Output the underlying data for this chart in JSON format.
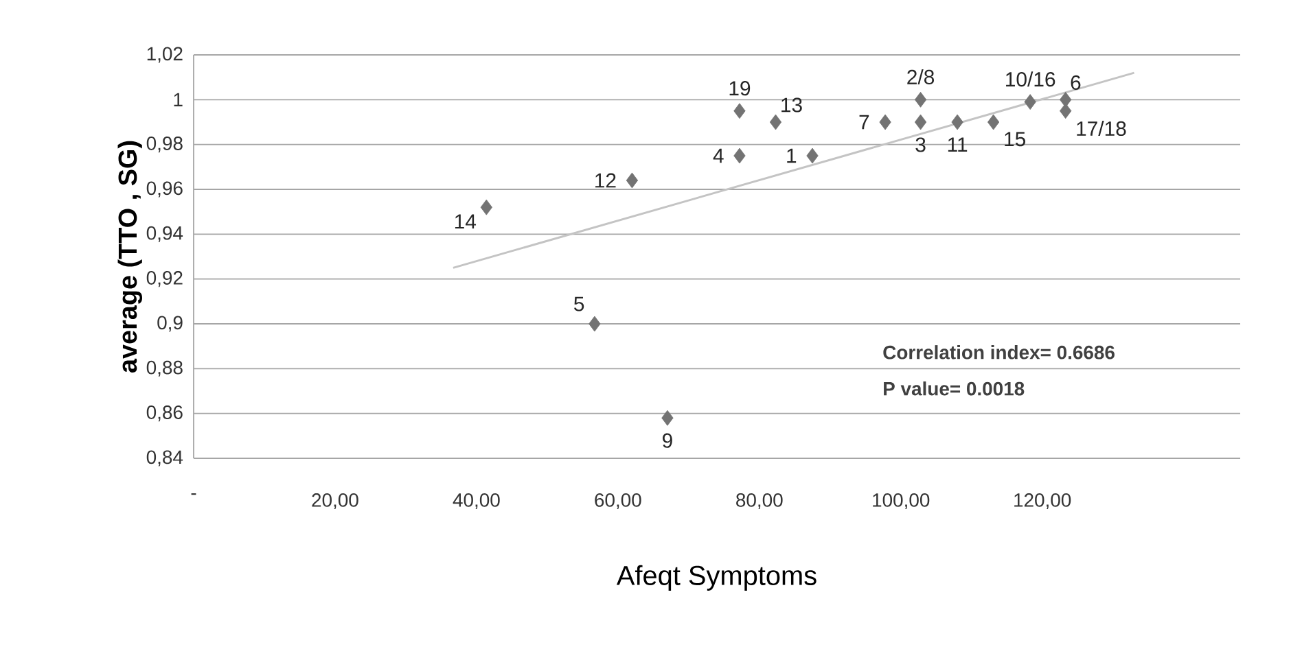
{
  "chart_data": {
    "type": "scatter",
    "xlabel": "Afeqt Symptoms",
    "ylabel": "average   (TTO ,  SG)",
    "xlim": [
      0,
      148
    ],
    "xticks": [
      {
        "value": 0,
        "label": "-"
      },
      {
        "value": 20,
        "label": "20,00"
      },
      {
        "value": 40,
        "label": "40,00"
      },
      {
        "value": 60,
        "label": "60,00"
      },
      {
        "value": 80,
        "label": "80,00"
      },
      {
        "value": 100,
        "label": "100,00"
      },
      {
        "value": 120,
        "label": "120,00"
      }
    ],
    "ylim": [
      0.84,
      1.02
    ],
    "yticks": [
      {
        "value": 0.84,
        "label": "0,84"
      },
      {
        "value": 0.86,
        "label": "0,86"
      },
      {
        "value": 0.88,
        "label": "0,88"
      },
      {
        "value": 0.9,
        "label": "0,9"
      },
      {
        "value": 0.92,
        "label": "0,92"
      },
      {
        "value": 0.94,
        "label": "0,94"
      },
      {
        "value": 0.96,
        "label": "0,96"
      },
      {
        "value": 0.98,
        "label": "0,98"
      },
      {
        "value": 1,
        "label": "1"
      },
      {
        "value": 1.02,
        "label": "1,02"
      }
    ],
    "grid": "y",
    "series": [
      {
        "marker": "diamond",
        "color": "#737373",
        "x": [
          41.4,
          62.0,
          77.2,
          77.2,
          82.3,
          87.5,
          97.8,
          102.8,
          102.8,
          108.0,
          113.1,
          118.3,
          123.3,
          123.3,
          56.7,
          67.0
        ],
        "values": [
          0.952,
          0.964,
          0.995,
          0.975,
          0.99,
          0.975,
          0.99,
          1.0,
          0.99,
          0.99,
          0.99,
          0.999,
          1.0,
          0.995,
          0.9,
          0.858
        ]
      },
      {
        "type": "line",
        "color": "#c4c4c4",
        "x": [
          36.7,
          133.0
        ],
        "values": [
          0.925,
          1.012
        ]
      }
    ],
    "annotations": [
      {
        "text": "14",
        "x": 41.4,
        "y": 0.952
      },
      {
        "text": "12",
        "x": 62.0,
        "y": 0.964
      },
      {
        "text": "19",
        "x": 77.2,
        "y": 0.995
      },
      {
        "text": "4",
        "x": 77.2,
        "y": 0.975
      },
      {
        "text": "13",
        "x": 82.3,
        "y": 0.99
      },
      {
        "text": "1",
        "x": 87.5,
        "y": 0.975
      },
      {
        "text": "7",
        "x": 97.8,
        "y": 0.99
      },
      {
        "text": "2/8",
        "x": 102.8,
        "y": 1.0
      },
      {
        "text": "3",
        "x": 102.8,
        "y": 0.99
      },
      {
        "text": "11",
        "x": 108.0,
        "y": 0.99
      },
      {
        "text": "15",
        "x": 113.1,
        "y": 0.99
      },
      {
        "text": "10/16",
        "x": 118.3,
        "y": 0.999
      },
      {
        "text": "6",
        "x": 123.3,
        "y": 1.0
      },
      {
        "text": "17/18",
        "x": 123.3,
        "y": 0.995
      },
      {
        "text": "5",
        "x": 56.7,
        "y": 0.9
      },
      {
        "text": "9",
        "x": 67.0,
        "y": 0.858
      },
      "Correlation index= 0.6686",
      "P value= 0.0018"
    ]
  }
}
